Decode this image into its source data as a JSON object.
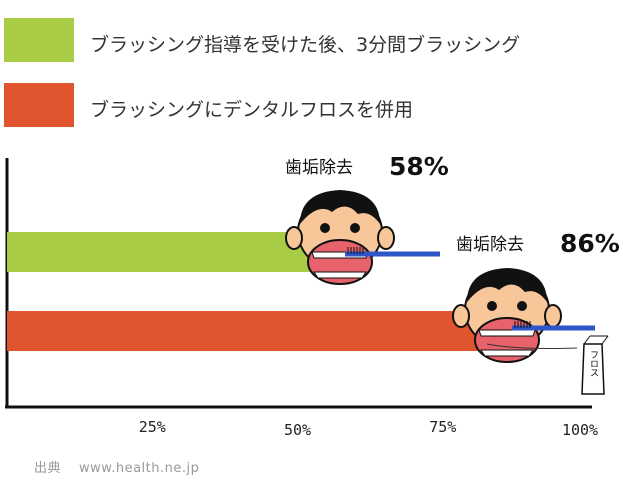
{
  "legend": [
    {
      "label": "ブラッシング指導を受けた後、3分間ブラッシング",
      "color": "#a8cc45"
    },
    {
      "label": "ブラッシングにデンタルフロスを併用",
      "color": "#e0552d"
    }
  ],
  "chart_data": {
    "type": "bar",
    "orientation": "horizontal",
    "series": [
      {
        "name": "ブラッシング指導を受けた後、3分間ブラッシング",
        "value": 58,
        "color": "#a8cc45",
        "annotation_prefix": "歯垢除去",
        "annotation_value": "58%"
      },
      {
        "name": "ブラッシングにデンタルフロスを併用",
        "value": 86,
        "color": "#e0552d",
        "annotation_prefix": "歯垢除去",
        "annotation_value": "86%"
      }
    ],
    "xlim": [
      0,
      100
    ],
    "x_ticks": [
      {
        "value": 25,
        "label": "25%"
      },
      {
        "value": 50,
        "label": "50%"
      },
      {
        "value": 75,
        "label": "75%"
      },
      {
        "value": 100,
        "label": "100%"
      }
    ],
    "grid": false,
    "legend_position": "top"
  },
  "floss_label": "フロス",
  "source": {
    "prefix": "出典",
    "text": "www.health.ne.jp"
  }
}
